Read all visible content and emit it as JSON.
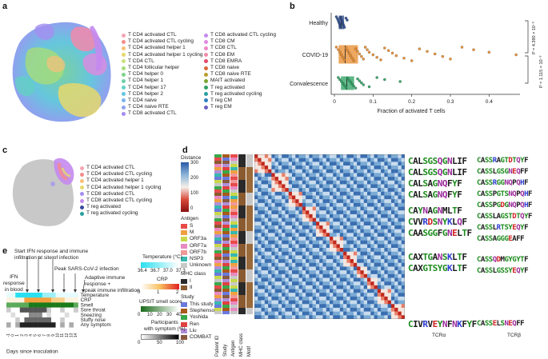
{
  "panels": {
    "a": "a",
    "b": "b",
    "c": "c",
    "d": "d",
    "e": "e"
  },
  "legend_a_col1": [
    {
      "label": "T CD4 activated CTL",
      "color": "#f4a6b4"
    },
    {
      "label": "T CD4 activated CTL cycling",
      "color": "#f48c8c"
    },
    {
      "label": "T CD4 activated helper 1",
      "color": "#f7c07a"
    },
    {
      "label": "T CD4 activated helper 1 cycling",
      "color": "#e6d86c"
    },
    {
      "label": "T CD4 CTL",
      "color": "#c9e17a"
    },
    {
      "label": "T CD4 follicular helper",
      "color": "#a6dc7a"
    },
    {
      "label": "T CD4 helper 0",
      "color": "#7fd48c"
    },
    {
      "label": "T CD4 helper 1",
      "color": "#6cd0a8"
    },
    {
      "label": "T CD4 helper 17",
      "color": "#63cfc4"
    },
    {
      "label": "T CD4 helper 2",
      "color": "#66c6dd"
    },
    {
      "label": "T CD4 naive",
      "color": "#7ab4ea"
    },
    {
      "label": "T CD4 naive RTE",
      "color": "#8ea2ee"
    },
    {
      "label": "T CD8 activated CTL",
      "color": "#a48ef0"
    }
  ],
  "legend_a_col2": [
    {
      "label": "T CD8 activated CTL cycling",
      "color": "#c48aee"
    },
    {
      "label": "T CD8 CM",
      "color": "#e08ae0"
    },
    {
      "label": "T CD8 CTL",
      "color": "#ee88c8"
    },
    {
      "label": "T CD8 EM",
      "color": "#f28aaa"
    },
    {
      "label": "T CD8 EMRA",
      "color": "#e24a6a"
    },
    {
      "label": "T CD8 naive",
      "color": "#d86a3a"
    },
    {
      "label": "T CD8 naive RTE",
      "color": "#b8a030"
    },
    {
      "label": "MAIT activated",
      "color": "#7aa830"
    },
    {
      "label": "T reg activated",
      "color": "#2fa060"
    },
    {
      "label": "T reg activated cycling",
      "color": "#2aa0a0"
    },
    {
      "label": "T reg CM",
      "color": "#3080c0"
    },
    {
      "label": "T reg EM",
      "color": "#6a60c0"
    }
  ],
  "legend_c": [
    {
      "label": "T CD4 activated CTL",
      "color": "#f4a6b4"
    },
    {
      "label": "T CD4 activated CTL cycling",
      "color": "#f48c8c"
    },
    {
      "label": "T CD4 activated helper 1",
      "color": "#f7c07a"
    },
    {
      "label": "T CD4 activated helper 1 cycling",
      "color": "#e6d86c"
    },
    {
      "label": "T CD8 activated CTL",
      "color": "#a48ef0"
    },
    {
      "label": "T CD8 activated CTL cycling",
      "color": "#c48aee"
    },
    {
      "label": "T reg activated",
      "color": "#3a4aa0"
    },
    {
      "label": "T reg activated cycling",
      "color": "#2aa0a0"
    }
  ],
  "chart_data": {
    "type": "scatter",
    "title": "Fraction of activated T cells by group",
    "categories": [
      "Healthy",
      "COVID-19",
      "Convalescence"
    ],
    "xlabel": "Fraction of activated T cells",
    "xlim": [
      0,
      0.48
    ],
    "xticks": [
      "0",
      "0.1",
      "0.2",
      "0.3",
      "0.4"
    ],
    "tick_values": [
      0,
      0.1,
      0.2,
      0.3,
      0.4
    ],
    "series": [
      {
        "name": "Healthy",
        "color": "#2a4a8c",
        "values": [
          0.005,
          0.008,
          0.01,
          0.012,
          0.014,
          0.015,
          0.016,
          0.018,
          0.02,
          0.022,
          0.024,
          0.026,
          0.03,
          0.033
        ]
      },
      {
        "name": "COVID-19",
        "color": "#e88a2a",
        "values": [
          0.005,
          0.01,
          0.014,
          0.018,
          0.022,
          0.026,
          0.03,
          0.034,
          0.038,
          0.042,
          0.046,
          0.05,
          0.055,
          0.06,
          0.065,
          0.07,
          0.075,
          0.08,
          0.085,
          0.09,
          0.1,
          0.11,
          0.12,
          0.13,
          0.14,
          0.15,
          0.16,
          0.18,
          0.2,
          0.22,
          0.24,
          0.26,
          0.28,
          0.3,
          0.33,
          0.36,
          0.4,
          0.47
        ]
      },
      {
        "name": "Convalescence",
        "color": "#2aa060",
        "values": [
          0.01,
          0.014,
          0.018,
          0.022,
          0.026,
          0.03,
          0.034,
          0.038,
          0.042,
          0.046,
          0.05,
          0.055,
          0.06,
          0.065,
          0.07,
          0.075,
          0.09,
          0.11,
          0.13,
          0.17
        ]
      }
    ],
    "boxes": [
      {
        "q1": 0.012,
        "median": 0.018,
        "q3": 0.024
      },
      {
        "q1": 0.012,
        "median": 0.028,
        "q3": 0.06
      },
      {
        "q1": 0.018,
        "median": 0.032,
        "q3": 0.05
      }
    ],
    "pvalues": [
      "P = 4.390 × 10⁻⁶",
      "P = 1.115 × 10⁻³"
    ]
  },
  "panel_d": {
    "distance_title": "Distance",
    "distance_ticks": [
      "300",
      "200",
      "100",
      "0"
    ],
    "antigen_title": "Antigen",
    "antigens": [
      {
        "label": "S",
        "color": "#e84a4a"
      },
      {
        "label": "M",
        "color": "#f0a040"
      },
      {
        "label": "ORF3a",
        "color": "#c9d84a"
      },
      {
        "label": "ORF7a",
        "color": "#e88ac0"
      },
      {
        "label": "ORF7b",
        "color": "#f09898"
      },
      {
        "label": "NSP3",
        "color": "#38b8b0"
      },
      {
        "label": "Unknown",
        "color": "#c8c8c8"
      }
    ],
    "mhc_title": "MHC class",
    "mhc": [
      {
        "label": "I",
        "color": "#2a2a2a"
      },
      {
        "label": "II",
        "color": "#8a5a30"
      }
    ],
    "study_title": "Study",
    "studies": [
      {
        "label": "This study",
        "color": "#6a7adc"
      },
      {
        "label": "Stephenson",
        "color": "#a85a1a"
      },
      {
        "label": "Yoshida",
        "color": "#3aa84a"
      },
      {
        "label": "Ren",
        "color": "#e04040"
      },
      {
        "label": "Liu",
        "color": "#b090d8"
      },
      {
        "label": "COMBAT",
        "color": "#8a5a40"
      }
    ],
    "column_labels": [
      "Patient ID",
      "Study",
      "Antigen",
      "MHC class",
      "Motif"
    ],
    "tcra_label": "TCRα",
    "tcrb_label": "TCRβ",
    "motifs_a": [
      "CALSGSQGNLIF",
      "CALSGSQGNLIF",
      "CALSAGNQFYF",
      "CALSAGNQFYF",
      "CAYNAGNMLTF",
      "CVVRDSNYKLQF",
      "CAASGGFGNELTF",
      "CAXTGANSKLTF",
      "CAXGTSYGKLTF",
      "CIVRVEYNFNKFYF"
    ],
    "motifs_b": [
      "CASSRAGTDTQYF",
      "CASSLGSGNEQFF",
      "CASSRGGNQPQHF",
      "CASSPGTSNQPQHF",
      "CASSPGDGNQPQHF",
      "CASSLAGSTDTQYF",
      "CASSLRTSYEQYF",
      "CASSAGGGEAFF",
      "CASSQDMGYGYTF",
      "CASSLGSSYEQYF",
      "CASSELSNEQFF"
    ]
  },
  "panel_e": {
    "timeline": [
      "Start IFN response and immune",
      "infiltration at site of infection",
      "Peak SARS-CoV-2 infection",
      "Adaptive immune",
      "response +",
      "peak immune infiltration",
      "IFN",
      "response",
      "in blood"
    ],
    "temp_title": "Temperature (°C)",
    "temp_ticks": [
      "36.4",
      "36.7",
      "37.0",
      "37.3"
    ],
    "crp_title": "CRP",
    "crp_ticks": [
      "0",
      "1",
      "2"
    ],
    "upsit_title": "UPSIT smell score",
    "upsit_ticks": [
      "0",
      "10",
      "20",
      "30",
      "40"
    ],
    "participants_title": "Participants",
    "participants_title2": "with symptom (%)",
    "participants_ticks": [
      "0",
      "50",
      "100"
    ],
    "rows": [
      "Temperature",
      "CRP",
      "Smell",
      "Sore throat",
      "Sneezing",
      "Stuffy nose",
      "Any symptom"
    ],
    "days": [
      "-1",
      "0",
      "1",
      "2",
      "3",
      "4",
      "5",
      "6",
      "7",
      "8",
      "9",
      "10",
      "11",
      "12",
      "13",
      "14"
    ],
    "xlabel": "Days since inoculation"
  }
}
